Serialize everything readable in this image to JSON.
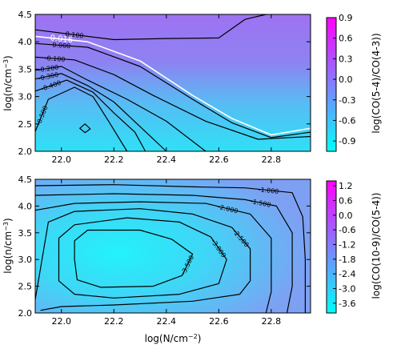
{
  "chart_data": [
    {
      "type": "contour",
      "xlabel": "",
      "ylabel": "log(n/cm^{-3})",
      "xlim": [
        21.9,
        22.95
      ],
      "ylim": [
        2.0,
        4.5
      ],
      "xticks": [
        "22.0",
        "22.2",
        "22.4",
        "22.6",
        "22.8"
      ],
      "yticks": [
        "2.0",
        "2.5",
        "3.0",
        "3.5",
        "4.0",
        "4.5"
      ],
      "colorbar": {
        "label": "log(CO(5-4)/CO(4-3))",
        "ticks": [
          "0.9",
          "0.6",
          "0.3",
          "0.0",
          "-0.3",
          "-0.6",
          "-0.9"
        ],
        "range": [
          -1.05,
          0.9
        ],
        "colors": [
          "#00ffff",
          "#ff00ff"
        ]
      },
      "contours": [
        {
          "level": 0.1,
          "label": "0.100",
          "color": "#000000",
          "points": [
            [
              21.9,
              4.22
            ],
            [
              22.2,
              4.04
            ],
            [
              22.4,
              4.06
            ],
            [
              22.6,
              4.07
            ],
            [
              22.7,
              4.41
            ],
            [
              22.78,
              4.5
            ]
          ]
        },
        {
          "level": 0.016,
          "label": "0.016",
          "color": "#ffffff",
          "highlight": true,
          "points": [
            [
              21.9,
              4.1
            ],
            [
              22.1,
              4.0
            ],
            [
              22.3,
              3.65
            ],
            [
              22.5,
              3.02
            ],
            [
              22.65,
              2.6
            ],
            [
              22.8,
              2.3
            ],
            [
              22.95,
              2.42
            ]
          ]
        },
        {
          "level": 0.0,
          "label": "0.000",
          "color": "#000000",
          "points": [
            [
              21.9,
              3.97
            ],
            [
              22.1,
              3.9
            ],
            [
              22.3,
              3.55
            ],
            [
              22.5,
              2.95
            ],
            [
              22.65,
              2.52
            ],
            [
              22.8,
              2.25
            ],
            [
              22.95,
              2.35
            ]
          ]
        },
        {
          "level": -0.1,
          "label": "-0.100",
          "color": "#000000",
          "points": [
            [
              21.9,
              3.72
            ],
            [
              22.05,
              3.67
            ],
            [
              22.2,
              3.4
            ],
            [
              22.35,
              3.02
            ],
            [
              22.55,
              2.55
            ],
            [
              22.75,
              2.22
            ],
            [
              22.95,
              2.27
            ]
          ]
        },
        {
          "level": -0.2,
          "label": "-0.200",
          "color": "#000000",
          "points": [
            [
              21.9,
              3.48
            ],
            [
              22.0,
              3.55
            ],
            [
              22.1,
              3.3
            ],
            [
              22.25,
              2.95
            ],
            [
              22.4,
              2.55
            ],
            [
              22.55,
              2.0
            ]
          ]
        },
        {
          "level": -0.3,
          "label": "-0.300",
          "color": "#000000",
          "points": [
            [
              21.9,
              3.32
            ],
            [
              22.0,
              3.42
            ],
            [
              22.1,
              3.2
            ],
            [
              22.2,
              2.9
            ],
            [
              22.3,
              2.45
            ],
            [
              22.4,
              2.0
            ]
          ]
        },
        {
          "level": -0.4,
          "label": "-0.400",
          "color": "#000000",
          "points": [
            [
              21.9,
              3.1
            ],
            [
              22.02,
              3.3
            ],
            [
              22.12,
              3.08
            ],
            [
              22.2,
              2.7
            ],
            [
              22.28,
              2.35
            ],
            [
              22.32,
              2.0
            ]
          ]
        },
        {
          "level": -0.5,
          "label": "-0.500",
          "color": "#000000",
          "points": [
            [
              21.9,
              2.36
            ],
            [
              21.95,
              2.95
            ],
            [
              22.05,
              3.17
            ],
            [
              22.12,
              3.0
            ],
            [
              22.18,
              2.55
            ],
            [
              22.25,
              2.0
            ]
          ]
        },
        {
          "level": -0.6,
          "label": "",
          "color": "#000000",
          "closed": true,
          "points": [
            [
              22.09,
              2.5
            ],
            [
              22.11,
              2.41
            ],
            [
              22.09,
              2.34
            ],
            [
              22.07,
              2.42
            ]
          ]
        }
      ]
    },
    {
      "type": "contour",
      "xlabel": "log(N/cm^{-2})",
      "ylabel": "log(n/cm^{-3})",
      "xlim": [
        21.9,
        22.95
      ],
      "ylim": [
        2.0,
        4.5
      ],
      "xticks": [
        "22.0",
        "22.2",
        "22.4",
        "22.6",
        "22.8"
      ],
      "yticks": [
        "2.0",
        "2.5",
        "3.0",
        "3.5",
        "4.0",
        "4.5"
      ],
      "colorbar": {
        "label": "log(CO(10-9)/CO(5-4))",
        "ticks": [
          "1.2",
          "0.6",
          "0.0",
          "-0.6",
          "-1.2",
          "-1.8",
          "-2.4",
          "-3.0",
          "-3.6"
        ],
        "range": [
          -4.0,
          1.4
        ],
        "colors": [
          "#00ffff",
          "#ff00ff"
        ]
      },
      "contours": [
        {
          "level": -1.0,
          "label": "-1.000",
          "color": "#000000",
          "points": [
            [
              21.9,
              4.38
            ],
            [
              22.2,
              4.4
            ],
            [
              22.5,
              4.36
            ],
            [
              22.7,
              4.34
            ],
            [
              22.88,
              4.25
            ],
            [
              22.92,
              3.8
            ],
            [
              22.93,
              3.0
            ],
            [
              22.93,
              2.0
            ]
          ]
        },
        {
          "level": -1.5,
          "label": "-1.500",
          "color": "#000000",
          "points": [
            [
              21.9,
              4.2
            ],
            [
              22.2,
              4.23
            ],
            [
              22.5,
              4.2
            ],
            [
              22.7,
              4.12
            ],
            [
              22.82,
              4.0
            ],
            [
              22.88,
              3.5
            ],
            [
              22.88,
              2.5
            ],
            [
              22.86,
              2.0
            ]
          ]
        },
        {
          "level": -2.0,
          "label": "-2.000",
          "color": "#000000",
          "points": [
            [
              21.9,
              3.92
            ],
            [
              22.05,
              4.05
            ],
            [
              22.3,
              4.08
            ],
            [
              22.55,
              4.05
            ],
            [
              22.72,
              3.85
            ],
            [
              22.8,
              3.4
            ],
            [
              22.8,
              2.4
            ],
            [
              22.78,
              2.0
            ]
          ]
        },
        {
          "level": -2.5,
          "label": "-2.500",
          "color": "#000000",
          "points": [
            [
              21.9,
              2.25
            ],
            [
              21.95,
              3.7
            ],
            [
              22.05,
              3.9
            ],
            [
              22.3,
              3.95
            ],
            [
              22.5,
              3.85
            ],
            [
              22.65,
              3.6
            ],
            [
              22.72,
              3.2
            ],
            [
              22.72,
              2.6
            ],
            [
              22.68,
              2.35
            ],
            [
              22.5,
              2.22
            ],
            [
              22.2,
              2.15
            ],
            [
              22.0,
              2.12
            ],
            [
              21.92,
              2.05
            ]
          ]
        },
        {
          "level": -3.0,
          "label": "-3.000",
          "color": "#000000",
          "closed": true,
          "points": [
            [
              21.99,
              3.4
            ],
            [
              22.05,
              3.65
            ],
            [
              22.25,
              3.78
            ],
            [
              22.45,
              3.7
            ],
            [
              22.57,
              3.42
            ],
            [
              22.63,
              3.0
            ],
            [
              22.6,
              2.55
            ],
            [
              22.45,
              2.35
            ],
            [
              22.2,
              2.28
            ],
            [
              22.05,
              2.35
            ],
            [
              21.99,
              2.6
            ]
          ]
        },
        {
          "level": -3.5,
          "label": "-3.500",
          "color": "#000000",
          "closed": true,
          "points": [
            [
              22.05,
              3.35
            ],
            [
              22.1,
              3.55
            ],
            [
              22.3,
              3.55
            ],
            [
              22.42,
              3.38
            ],
            [
              22.5,
              3.1
            ],
            [
              22.46,
              2.7
            ],
            [
              22.35,
              2.5
            ],
            [
              22.15,
              2.48
            ],
            [
              22.06,
              2.62
            ],
            [
              22.05,
              3.0
            ]
          ]
        }
      ]
    }
  ]
}
